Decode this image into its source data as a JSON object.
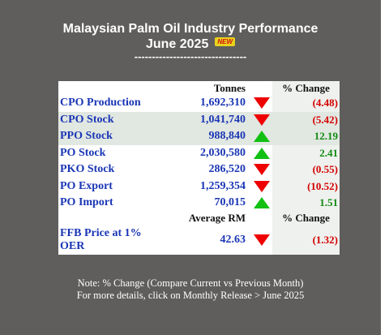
{
  "header": {
    "title_line1": "Malaysian Palm Oil Industry Performance",
    "title_line2": "June 2025",
    "new_badge": "NEW",
    "divider": "--------------------------------"
  },
  "table": {
    "col_tonnes": "Tonnes",
    "col_change": "% Change",
    "rows": [
      {
        "name": "CPO Production",
        "value": "1,692,310",
        "direction": "down",
        "change": "(4.48)"
      },
      {
        "name": "CPO Stock",
        "value": "1,041,740",
        "direction": "down",
        "change": "(5.42)"
      },
      {
        "name": "PPO Stock",
        "value": "988,840",
        "direction": "up",
        "change": "12.19"
      },
      {
        "name": "PO Stock",
        "value": "2,030,580",
        "direction": "up",
        "change": "2.41"
      },
      {
        "name": "PKO Stock",
        "value": "286,520",
        "direction": "down",
        "change": "(0.55)"
      },
      {
        "name": "PO Export",
        "value": "1,259,354",
        "direction": "down",
        "change": "(10.52)"
      },
      {
        "name": "PO Import",
        "value": "70,015",
        "direction": "up",
        "change": "1.51"
      }
    ],
    "col_avg": "Average RM",
    "col_change2": "% Change",
    "ffb": {
      "name": "FFB Price at 1% OER",
      "value": "42.63",
      "direction": "down",
      "change": "(1.32)"
    }
  },
  "note": {
    "line1": "Note: % Change (Compare Current vs Previous Month)",
    "line2": "For more details, click on Monthly Release > June 2025"
  },
  "colors": {
    "background": "#5f5e5c",
    "label_blue": "#1a36b5",
    "negative_red": "#d40000",
    "positive_green": "#128a12",
    "arrow_down": "#ee0000",
    "arrow_up": "#12c012"
  },
  "icons": {
    "down": "red-down-triangle-icon",
    "up": "green-up-triangle-icon"
  }
}
